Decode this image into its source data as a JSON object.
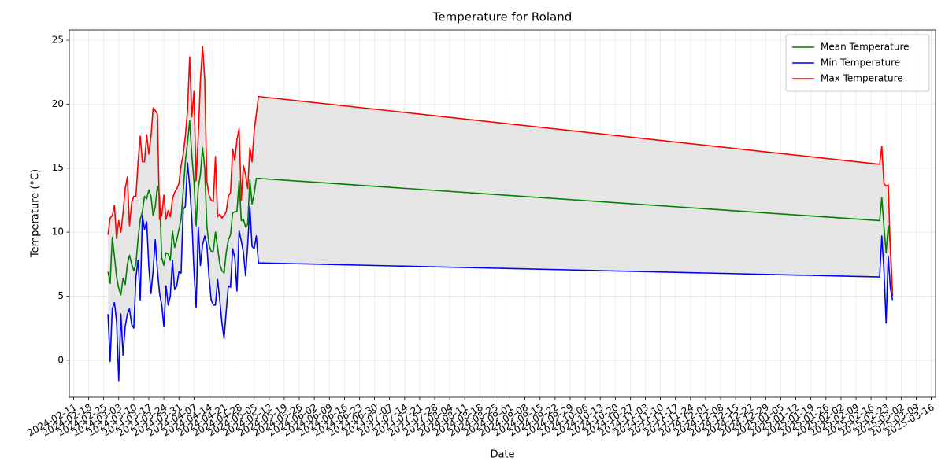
{
  "chart_data": {
    "type": "line",
    "title": "Temperature for Roland",
    "x_label": "Date",
    "y_label": "Temperature (°C)",
    "x": [
      "2024-02-27",
      "2024-02-28",
      "2024-02-29",
      "2024-03-01",
      "2024-03-02",
      "2024-03-03",
      "2024-03-04",
      "2024-03-05",
      "2024-03-06",
      "2024-03-07",
      "2024-03-08",
      "2024-03-09",
      "2024-03-10",
      "2024-03-11",
      "2024-03-12",
      "2024-03-13",
      "2024-03-14",
      "2024-03-15",
      "2024-03-16",
      "2024-03-17",
      "2024-03-18",
      "2024-03-19",
      "2024-03-20",
      "2024-03-21",
      "2024-03-22",
      "2024-03-23",
      "2024-03-24",
      "2024-03-25",
      "2024-03-26",
      "2024-03-27",
      "2024-03-28",
      "2024-03-29",
      "2024-03-30",
      "2024-03-31",
      "2024-04-01",
      "2024-04-02",
      "2024-04-03",
      "2024-04-04",
      "2024-04-05",
      "2024-04-06",
      "2024-04-07",
      "2024-04-08",
      "2024-04-09",
      "2024-04-10",
      "2024-04-11",
      "2024-04-12",
      "2024-04-13",
      "2024-04-14",
      "2024-04-15",
      "2024-04-16",
      "2024-04-17",
      "2024-04-18",
      "2024-04-19",
      "2024-04-20",
      "2024-04-21",
      "2024-04-22",
      "2024-04-23",
      "2024-04-24",
      "2024-04-25",
      "2024-04-26",
      "2024-04-27",
      "2024-04-28",
      "2024-04-29",
      "2024-04-30",
      "2024-05-01",
      "2024-05-02",
      "2024-05-03",
      "2024-05-04",
      "2024-05-05",
      "2024-05-06",
      "2024-05-07",
      "2025-02-20",
      "2025-02-21",
      "2025-02-22",
      "2025-02-23",
      "2025-02-24",
      "2025-02-25",
      "2025-02-26"
    ],
    "series": [
      {
        "name": "Mean Temperature",
        "color": "#008000",
        "values": [
          6.9,
          6.0,
          9.6,
          8.1,
          6.5,
          5.6,
          5.1,
          6.4,
          5.9,
          7.5,
          8.2,
          7.5,
          7.0,
          7.5,
          9.5,
          11.0,
          11.6,
          12.8,
          12.6,
          13.3,
          12.8,
          11.3,
          12.0,
          13.6,
          12.8,
          8.0,
          7.4,
          8.4,
          8.3,
          7.8,
          10.1,
          8.8,
          9.4,
          10.2,
          11.0,
          13.2,
          15.5,
          17.0,
          18.7,
          16.0,
          14.0,
          10.5,
          13.5,
          14.5,
          16.6,
          15.0,
          10.5,
          9.0,
          8.5,
          8.5,
          10.0,
          8.8,
          7.5,
          7.0,
          6.8,
          8.4,
          9.4,
          9.8,
          11.5,
          11.6,
          11.6,
          14.0,
          10.9,
          11.0,
          10.4,
          10.6,
          14.1,
          12.2,
          13.0,
          14.2,
          14.2,
          10.9,
          12.7,
          10.4,
          8.4,
          10.5,
          9.0,
          5.0
        ]
      },
      {
        "name": "Min Temperature",
        "color": "#0000ff",
        "values": [
          3.6,
          -0.1,
          4.0,
          4.5,
          3.0,
          -1.6,
          3.6,
          0.4,
          2.6,
          3.6,
          4.0,
          2.8,
          2.5,
          6.5,
          7.8,
          4.7,
          11.3,
          10.2,
          10.8,
          7.3,
          5.2,
          7.0,
          9.4,
          7.0,
          5.2,
          4.3,
          2.6,
          5.8,
          4.3,
          5.0,
          7.8,
          5.5,
          5.8,
          6.9,
          6.8,
          11.8,
          12.0,
          15.4,
          13.6,
          11.0,
          7.0,
          4.1,
          10.4,
          7.4,
          9.0,
          9.7,
          9.0,
          6.5,
          4.7,
          4.3,
          4.3,
          6.3,
          4.7,
          2.9,
          1.7,
          3.8,
          5.8,
          5.7,
          8.7,
          8.0,
          5.4,
          10.1,
          9.3,
          8.4,
          6.6,
          9.0,
          12.0,
          8.9,
          8.7,
          9.7,
          7.6,
          6.5,
          9.7,
          7.0,
          2.9,
          8.1,
          5.6,
          4.7
        ]
      },
      {
        "name": "Max Temperature",
        "color": "#ff0000",
        "values": [
          9.8,
          11.1,
          11.3,
          12.1,
          9.5,
          10.9,
          10.0,
          11.5,
          13.4,
          14.3,
          10.5,
          12.3,
          12.8,
          12.8,
          15.5,
          17.5,
          15.5,
          15.5,
          17.6,
          16.1,
          17.5,
          19.7,
          19.5,
          19.2,
          11.0,
          11.3,
          12.9,
          11.0,
          11.7,
          11.2,
          12.6,
          13.1,
          13.4,
          13.8,
          15.2,
          16.1,
          17.5,
          19.5,
          23.7,
          19.0,
          21.0,
          14.0,
          17.5,
          21.9,
          24.5,
          22.0,
          14.0,
          12.9,
          12.5,
          12.4,
          15.9,
          11.2,
          11.4,
          11.1,
          11.3,
          11.6,
          12.8,
          13.1,
          16.5,
          15.6,
          17.2,
          18.1,
          12.5,
          15.2,
          14.5,
          13.4,
          16.6,
          15.5,
          17.9,
          19.2,
          20.6,
          15.3,
          16.7,
          13.8,
          13.6,
          13.7,
          8.5,
          5.1
        ]
      }
    ],
    "fill_color": "#e5e5e5",
    "xlim": [
      "2024-02-09",
      "2025-03-18"
    ],
    "xticks": [
      "2024-02-11",
      "2024-02-18",
      "2024-02-25",
      "2024-03-03",
      "2024-03-10",
      "2024-03-17",
      "2024-03-24",
      "2024-03-31",
      "2024-04-07",
      "2024-04-14",
      "2024-04-21",
      "2024-04-28",
      "2024-05-05",
      "2024-05-12",
      "2024-05-19",
      "2024-05-26",
      "2024-06-02",
      "2024-06-09",
      "2024-06-16",
      "2024-06-23",
      "2024-06-30",
      "2024-07-07",
      "2024-07-14",
      "2024-07-21",
      "2024-07-28",
      "2024-08-04",
      "2024-08-11",
      "2024-08-18",
      "2024-08-25",
      "2024-09-01",
      "2024-09-08",
      "2024-09-15",
      "2024-09-22",
      "2024-09-29",
      "2024-10-06",
      "2024-10-13",
      "2024-10-20",
      "2024-10-27",
      "2024-11-03",
      "2024-11-10",
      "2024-11-17",
      "2024-11-24",
      "2024-12-01",
      "2024-12-08",
      "2024-12-15",
      "2024-12-22",
      "2024-12-29",
      "2025-01-05",
      "2025-01-12",
      "2025-01-19",
      "2025-01-26",
      "2025-02-02",
      "2025-02-09",
      "2025-02-16",
      "2025-02-23",
      "2025-03-02",
      "2025-03-09",
      "2025-03-16"
    ],
    "ylim": [
      -2.9,
      25.8
    ],
    "yticks": [
      0,
      5,
      10,
      15,
      20,
      25
    ],
    "grid": true,
    "legend": "upper right"
  }
}
